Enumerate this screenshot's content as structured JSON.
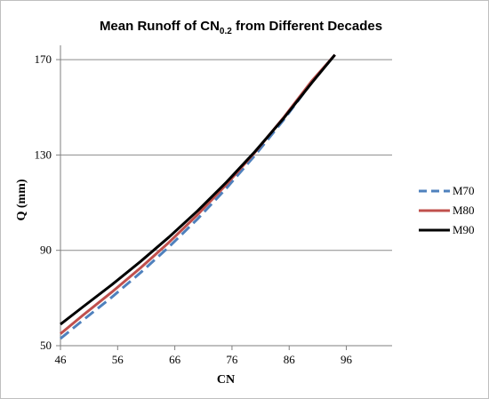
{
  "chart_data": {
    "type": "line",
    "title": "Mean Runoff of CN",
    "title_subscript": "0.2",
    "title_suffix": " from Different Decades",
    "xlabel": "CN",
    "ylabel": "Q (mm)",
    "xlim": [
      46,
      104
    ],
    "ylim": [
      50,
      176
    ],
    "x_ticks": [
      "46",
      "56",
      "66",
      "76",
      "86",
      "96"
    ],
    "y_ticks": [
      "50",
      "90",
      "130",
      "170"
    ],
    "grid": "horizontal",
    "legend_position": "right",
    "series": [
      {
        "name": "M70",
        "color": "#4f81bd",
        "dash": "dashed",
        "x": [
          46,
          50,
          55,
          60,
          65,
          70,
          75,
          80,
          85,
          90,
          94
        ],
        "y": [
          53.0,
          60.8,
          70.4,
          80.6,
          91.5,
          103.2,
          116.0,
          129.8,
          144.6,
          160.6,
          172.0
        ]
      },
      {
        "name": "M80",
        "color": "#c0504d",
        "dash": "solid",
        "x": [
          46,
          50,
          55,
          60,
          65,
          70,
          75,
          80,
          85,
          90,
          94
        ],
        "y": [
          55.0,
          62.9,
          72.5,
          82.6,
          93.4,
          105.0,
          117.6,
          131.1,
          145.6,
          161.2,
          172.0
        ]
      },
      {
        "name": "M90",
        "color": "#000000",
        "dash": "solid",
        "x": [
          46,
          50,
          55,
          60,
          65,
          70,
          75,
          80,
          85,
          90,
          94
        ],
        "y": [
          59.0,
          66.4,
          75.6,
          85.3,
          95.6,
          106.6,
          118.5,
          131.4,
          145.3,
          160.4,
          172.0
        ]
      }
    ]
  }
}
